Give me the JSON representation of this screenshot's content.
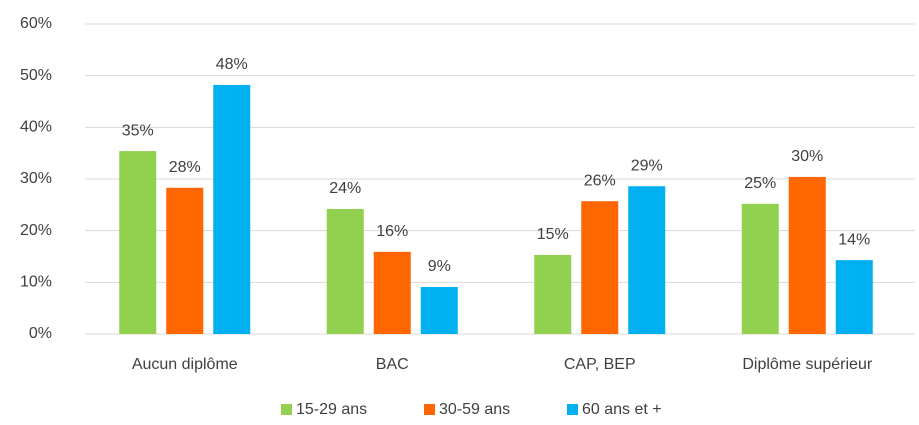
{
  "chart_data": {
    "type": "bar",
    "categories": [
      "Aucun diplôme",
      "BAC",
      "CAP, BEP",
      "Diplôme supérieur"
    ],
    "series": [
      {
        "name": "15-29 ans",
        "color": "#92d050",
        "values": [
          35.4,
          24.2,
          15.3,
          25.2
        ],
        "value_labels": [
          "35%",
          "24%",
          "15%",
          "25%"
        ]
      },
      {
        "name": "30-59 ans",
        "color": "#ff6600",
        "values": [
          28.3,
          15.9,
          25.7,
          30.4
        ],
        "value_labels": [
          "28%",
          "16%",
          "26%",
          "30%"
        ]
      },
      {
        "name": "60 ans et +",
        "color": "#00b0f0",
        "values": [
          48.2,
          9.1,
          28.6,
          14.3
        ],
        "value_labels": [
          "48%",
          "9%",
          "29%",
          "14%"
        ]
      }
    ],
    "ylim": [
      0,
      60
    ],
    "yticks": [
      {
        "value": 0,
        "label": "0%"
      },
      {
        "value": 10,
        "label": "10%"
      },
      {
        "value": 20,
        "label": "20%"
      },
      {
        "value": 30,
        "label": "30%"
      },
      {
        "value": 40,
        "label": "40%"
      },
      {
        "value": 50,
        "label": "50%"
      },
      {
        "value": 60,
        "label": "60%"
      }
    ],
    "grid": true,
    "legend": "bottom"
  }
}
